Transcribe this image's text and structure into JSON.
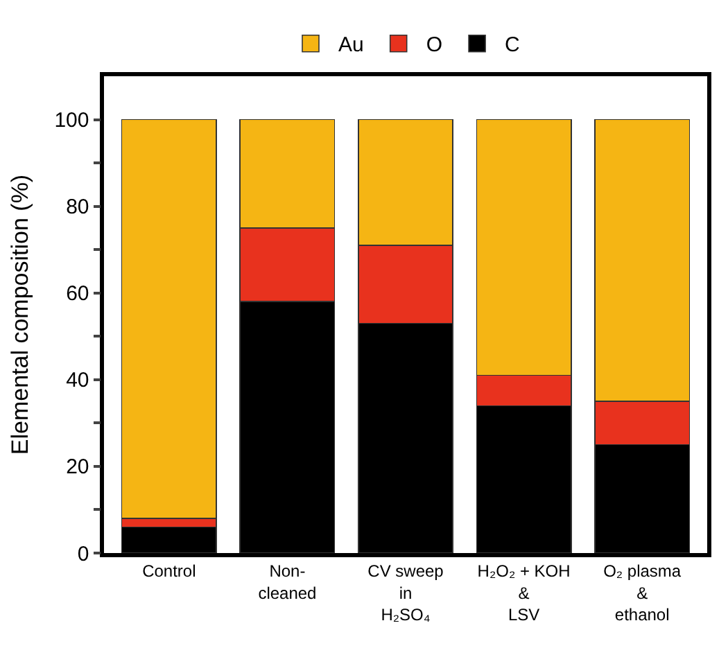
{
  "chart_data": {
    "type": "bar",
    "stacked": true,
    "ylabel": "Elemental composition (%)",
    "categories": [
      "Control",
      "Non-\ncleaned",
      "CV sweep\nin\nH₂SO₄",
      "H₂O₂ + KOH\n&\nLSV",
      "O₂ plasma\n&\nethanol"
    ],
    "series": [
      {
        "name": "C",
        "color": "#000000",
        "values": [
          6,
          58,
          53,
          34,
          25
        ]
      },
      {
        "name": "O",
        "color": "#e8321e",
        "values": [
          2,
          17,
          18,
          7,
          10
        ]
      },
      {
        "name": "Au",
        "color": "#f5b514",
        "values": [
          92,
          25,
          29,
          59,
          65
        ]
      }
    ],
    "ylim": [
      0,
      110
    ],
    "yticks": [
      0,
      {
        "value": 10,
        "label": null
      },
      20,
      {
        "value": 30,
        "label": null
      },
      40,
      {
        "value": 50,
        "label": null
      },
      60,
      {
        "value": 70,
        "label": null
      },
      80,
      {
        "value": 90,
        "label": null
      },
      100
    ],
    "legend": "top"
  }
}
